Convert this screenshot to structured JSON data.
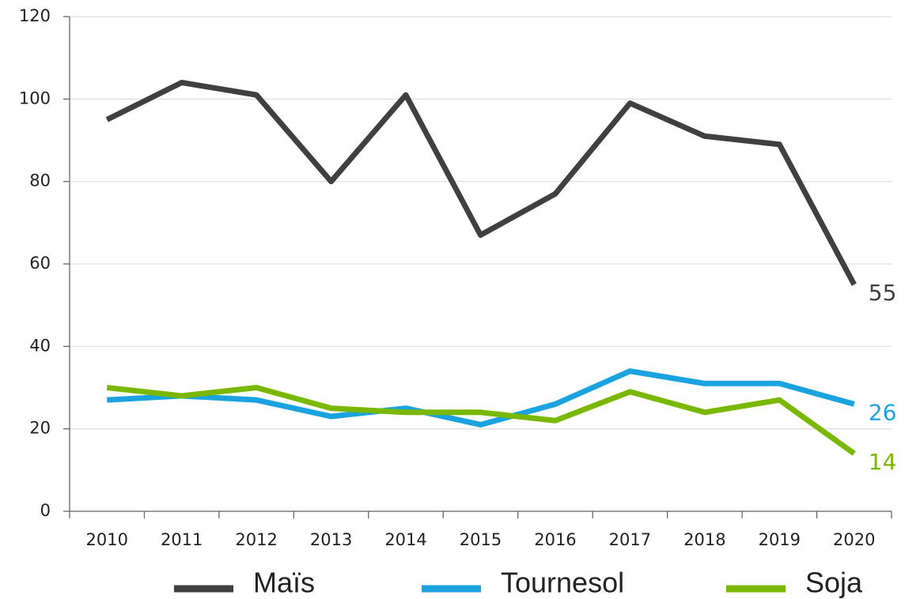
{
  "chart_data": {
    "type": "line",
    "categories": [
      "2010",
      "2011",
      "2012",
      "2013",
      "2014",
      "2015",
      "2016",
      "2017",
      "2018",
      "2019",
      "2020"
    ],
    "series": [
      {
        "name": "Maïs",
        "color": "#404040",
        "values": [
          95,
          104,
          101,
          80,
          101,
          67,
          77,
          99,
          91,
          89,
          55
        ]
      },
      {
        "name": "Tournesol",
        "color": "#1ba3e0",
        "values": [
          27,
          28,
          27,
          23,
          25,
          21,
          26,
          34,
          31,
          31,
          26
        ]
      },
      {
        "name": "Soja",
        "color": "#7ab800",
        "values": [
          30,
          28,
          30,
          25,
          24,
          24,
          22,
          29,
          24,
          27,
          14
        ]
      }
    ],
    "ylim": [
      0,
      120
    ],
    "yticks": [
      0,
      20,
      40,
      60,
      80,
      100,
      120
    ],
    "grid": true,
    "legend": "bottom"
  }
}
